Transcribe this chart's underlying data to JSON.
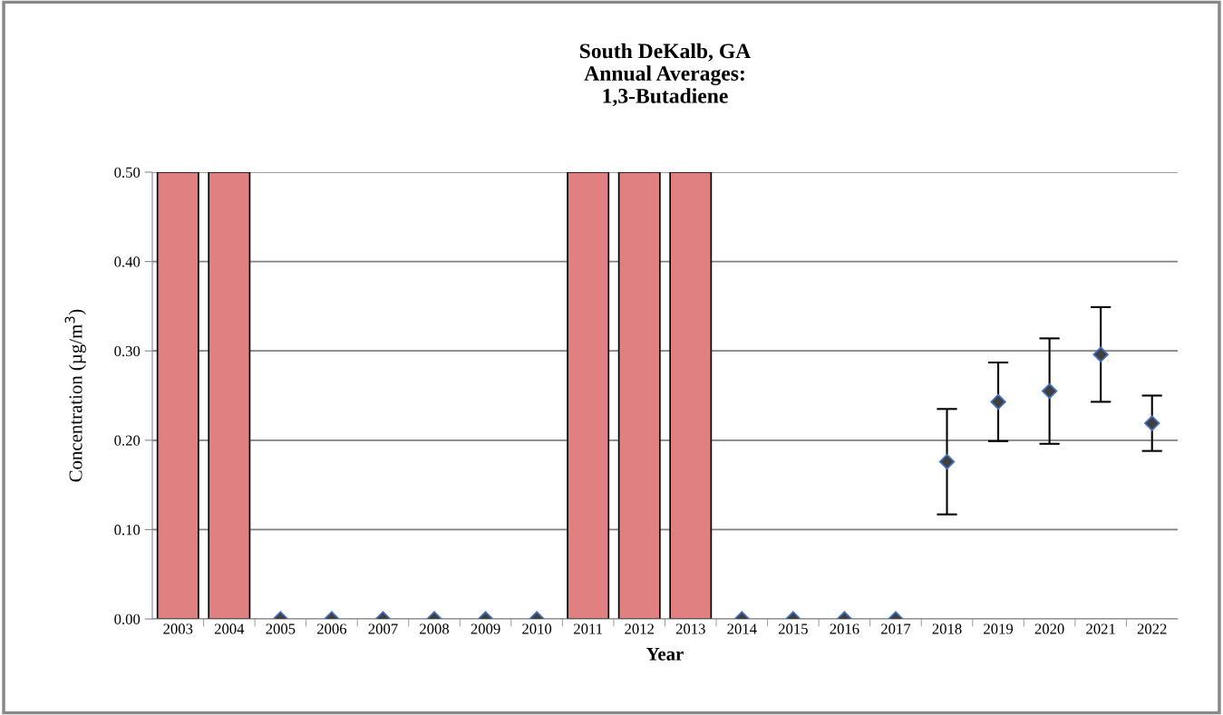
{
  "chart_data": {
    "type": "bar",
    "title": "South DeKalb, GA\nAnnual Averages:\n1,3-Butadiene",
    "xlabel": "Year",
    "ylabel": "Concentration (µg/m$^{3}$)",
    "categories": [
      "2003",
      "2004",
      "2005",
      "2006",
      "2007",
      "2008",
      "2009",
      "2010",
      "2011",
      "2012",
      "2013",
      "2014",
      "2015",
      "2016",
      "2017",
      "2018",
      "2019",
      "2020",
      "2021",
      "2022"
    ],
    "series": [
      {
        "color": "#e08080",
        "values": [
          0.5,
          0.5,
          null,
          null,
          null,
          null,
          null,
          null,
          0.5,
          0.5,
          0.5,
          null,
          null,
          null,
          null,
          null,
          null,
          null,
          null,
          null
        ]
      },
      {
        "type": "scatter",
        "color": "#404040",
        "marker": "diamond",
        "values": [
          null,
          null,
          0,
          0,
          0,
          0,
          0,
          0,
          null,
          null,
          null,
          0,
          0,
          0,
          0,
          0.176,
          0.243,
          0.255,
          0.296,
          0.219
        ],
        "errors": [
          null,
          null,
          null,
          null,
          null,
          null,
          null,
          null,
          null,
          null,
          null,
          null,
          null,
          null,
          null,
          0.059,
          0.044,
          0.059,
          0.053,
          0.031
        ]
      }
    ],
    "ylim": [
      0,
      0.5
    ],
    "yticks": [
      {
        "value": 0,
        "label": "0.00"
      },
      {
        "value": 0.1,
        "label": "0.10"
      },
      {
        "value": 0.2,
        "label": "0.20"
      },
      {
        "value": 0.3,
        "label": "0.30"
      },
      {
        "value": 0.4,
        "label": "0.40"
      },
      {
        "value": 0.5,
        "label": "0.50"
      }
    ],
    "grid": "y",
    "legend": false
  }
}
